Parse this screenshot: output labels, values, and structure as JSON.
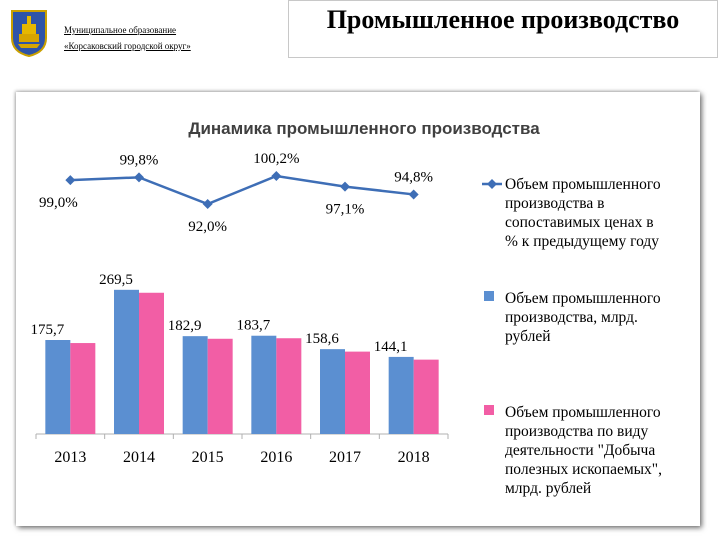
{
  "header": {
    "org_line1": "Муниципальное образование",
    "org_line2": "«Корсаковский городской округ»",
    "page_title": "Промышленное производство",
    "emblem_icon": "coat-of-arms-icon"
  },
  "chart_data": {
    "type": "bar",
    "title": "Динамика промышленного производства",
    "categories": [
      "2013",
      "2014",
      "2015",
      "2016",
      "2017",
      "2018"
    ],
    "series": [
      {
        "name": "Объем промышленного производства в сопоставимых ценах в % к предыдущему году",
        "type": "line",
        "color": "#3e6eb6",
        "values": [
          99.0,
          99.8,
          92.0,
          100.2,
          97.1,
          94.8
        ],
        "labels": [
          "99,0%",
          "99,8%",
          "92,0%",
          "100,2%",
          "97,1%",
          "94,8%"
        ]
      },
      {
        "name": "Объем промышленного производства, млрд. рублей",
        "type": "bar",
        "color": "#5b8fd1",
        "values": [
          175.7,
          269.5,
          182.9,
          183.7,
          158.6,
          144.1
        ],
        "labels": [
          "175,7",
          "269,5",
          "182,9",
          "183,7",
          "158,6",
          "144,1"
        ]
      },
      {
        "name": "Объем промышленного производства по виду деятельности \"Добыча полезных ископаемых\", млрд. рублей",
        "type": "bar",
        "color": "#f25ea5",
        "values": [
          170.0,
          264.0,
          178.0,
          179.0,
          154.0,
          139.0
        ]
      }
    ],
    "legend_position": "right",
    "legend_lines": [
      [
        "Объем промышленного",
        "производства в",
        "сопоставимых ценах в",
        "% к предыдущему году"
      ],
      [
        "Объем промышленного",
        "производства, млрд.",
        "рублей"
      ],
      [
        "Объем промышленного",
        "производства по виду",
        "деятельности \"Добыча",
        "полезных ископаемых\",",
        "млрд. рублей"
      ]
    ],
    "grid": false
  }
}
